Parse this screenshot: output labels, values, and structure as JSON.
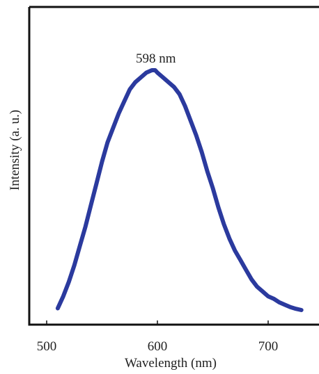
{
  "chart_data": {
    "type": "line",
    "xlabel": "Wavelength (nm)",
    "ylabel": "Intensity (a. u.)",
    "xlim": [
      490,
      743
    ],
    "ylim": [
      0,
      1.05
    ],
    "x_ticks": [
      500,
      600,
      700
    ],
    "x_tick_labels": [
      "500",
      "600",
      "700"
    ],
    "y_ticks_visible": false,
    "grid": false,
    "legend": "none",
    "annotation": {
      "text": "598 nm",
      "x": 598
    },
    "line_color": "#2b3a9e",
    "series": [
      {
        "x": [
          510,
          515,
          520,
          525,
          530,
          535,
          540,
          545,
          550,
          555,
          560,
          565,
          570,
          575,
          580,
          585,
          590,
          595,
          598,
          600,
          605,
          610,
          615,
          620,
          625,
          630,
          635,
          640,
          645,
          650,
          655,
          660,
          665,
          670,
          675,
          680,
          685,
          690,
          695,
          700,
          705,
          710,
          715,
          720,
          725,
          730
        ],
        "values": [
          0.01,
          0.06,
          0.12,
          0.19,
          0.27,
          0.35,
          0.44,
          0.53,
          0.62,
          0.7,
          0.76,
          0.82,
          0.87,
          0.92,
          0.95,
          0.97,
          0.99,
          1.0,
          1.0,
          0.99,
          0.97,
          0.95,
          0.93,
          0.9,
          0.85,
          0.79,
          0.73,
          0.66,
          0.58,
          0.51,
          0.43,
          0.36,
          0.3,
          0.25,
          0.21,
          0.17,
          0.13,
          0.1,
          0.08,
          0.06,
          0.05,
          0.035,
          0.025,
          0.015,
          0.008,
          0.003
        ]
      }
    ]
  }
}
